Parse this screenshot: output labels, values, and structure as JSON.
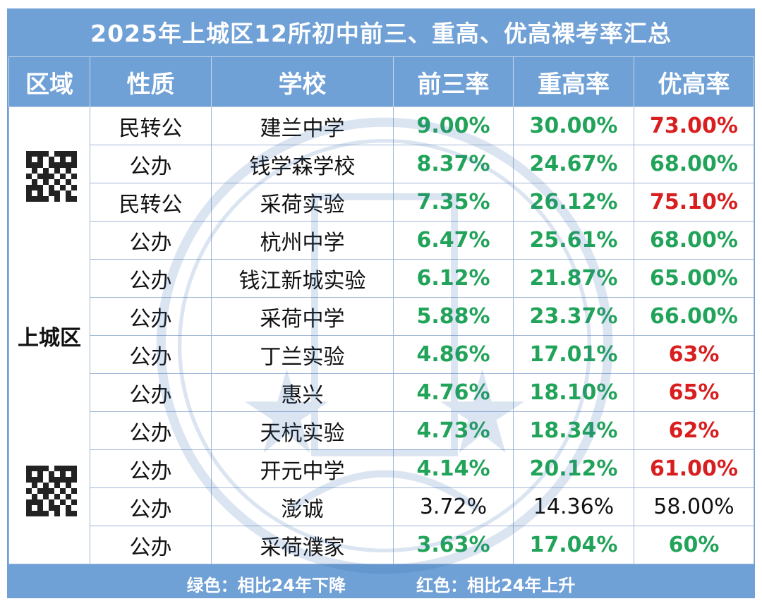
{
  "title": "2025年上城区12所初中前三、重高、优高裸考率汇总",
  "colors": {
    "frame": "#6fa0d6",
    "down": "#22a35a",
    "up": "#d81e1e",
    "plain": "#111111"
  },
  "chart_data": {
    "type": "table",
    "columns": [
      "区域",
      "性质",
      "学校",
      "前三率",
      "重高率",
      "优高率"
    ],
    "region": "上城区",
    "rows": [
      {
        "type": "民转公",
        "school": "建兰中学",
        "qiansan": "9.00%",
        "zhonggao": "30.00%",
        "yougao": "73.00%",
        "c1": "down",
        "c2": "down",
        "c3": "up"
      },
      {
        "type": "公办",
        "school": "钱学森学校",
        "qiansan": "8.37%",
        "zhonggao": "24.67%",
        "yougao": "68.00%",
        "c1": "down",
        "c2": "down",
        "c3": "down"
      },
      {
        "type": "民转公",
        "school": "采荷实验",
        "qiansan": "7.35%",
        "zhonggao": "26.12%",
        "yougao": "75.10%",
        "c1": "down",
        "c2": "down",
        "c3": "up"
      },
      {
        "type": "公办",
        "school": "杭州中学",
        "qiansan": "6.47%",
        "zhonggao": "25.61%",
        "yougao": "68.00%",
        "c1": "down",
        "c2": "down",
        "c3": "down"
      },
      {
        "type": "公办",
        "school": "钱江新城实验",
        "qiansan": "6.12%",
        "zhonggao": "21.87%",
        "yougao": "65.00%",
        "c1": "down",
        "c2": "down",
        "c3": "down"
      },
      {
        "type": "公办",
        "school": "采荷中学",
        "qiansan": "5.88%",
        "zhonggao": "23.37%",
        "yougao": "66.00%",
        "c1": "down",
        "c2": "down",
        "c3": "down"
      },
      {
        "type": "公办",
        "school": "丁兰实验",
        "qiansan": "4.86%",
        "zhonggao": "17.01%",
        "yougao": "63%",
        "c1": "down",
        "c2": "down",
        "c3": "up"
      },
      {
        "type": "公办",
        "school": "惠兴",
        "qiansan": "4.76%",
        "zhonggao": "18.10%",
        "yougao": "65%",
        "c1": "down",
        "c2": "down",
        "c3": "up"
      },
      {
        "type": "公办",
        "school": "天杭实验",
        "qiansan": "4.73%",
        "zhonggao": "18.34%",
        "yougao": "62%",
        "c1": "down",
        "c2": "down",
        "c3": "up"
      },
      {
        "type": "公办",
        "school": "开元中学",
        "qiansan": "4.14%",
        "zhonggao": "20.12%",
        "yougao": "61.00%",
        "c1": "down",
        "c2": "down",
        "c3": "up"
      },
      {
        "type": "公办",
        "school": "澎诚",
        "qiansan": "3.72%",
        "zhonggao": "14.36%",
        "yougao": "58.00%",
        "c1": "plain",
        "c2": "plain",
        "c3": "plain"
      },
      {
        "type": "公办",
        "school": "采荷濮家",
        "qiansan": "3.63%",
        "zhonggao": "17.04%",
        "yougao": "60%",
        "c1": "down",
        "c2": "down",
        "c3": "down"
      }
    ],
    "legend": {
      "green": "绿色：相比24年下降",
      "red": "红色：相比24年上升"
    }
  }
}
